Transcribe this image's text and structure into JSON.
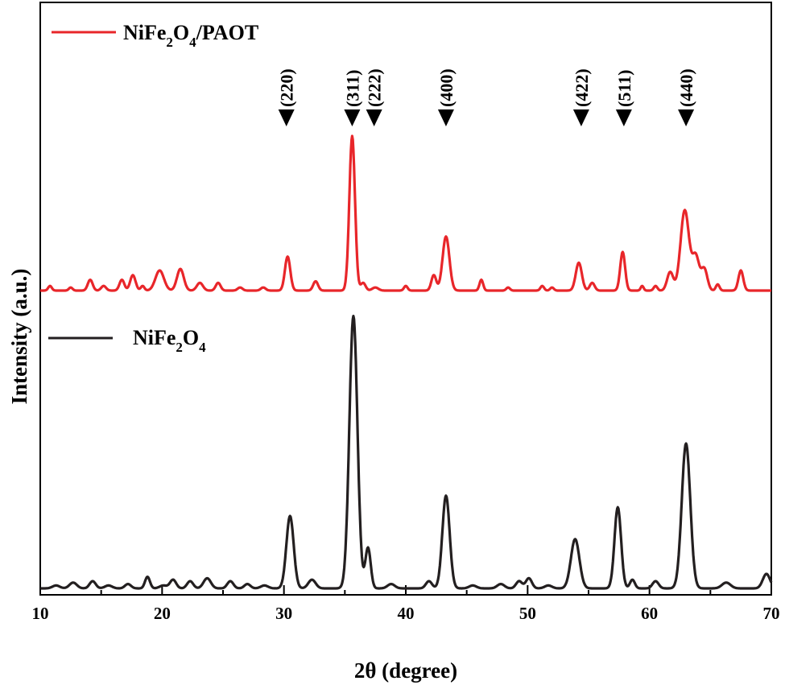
{
  "chart_data": {
    "type": "line",
    "xlabel": "2θ (degree)",
    "ylabel": "Intensity (a.u.)",
    "xlim": [
      10,
      70
    ],
    "x_ticks": [
      10,
      20,
      30,
      40,
      50,
      60,
      70
    ],
    "y_ticks_visible": false,
    "grid": false,
    "legend": [
      {
        "base": "NiFe",
        "sub1": "2",
        "mid": "O",
        "sub2": "4",
        "tail": "/PAOT",
        "color": "#e8262a"
      },
      {
        "base": "NiFe",
        "sub1": "2",
        "mid": "O",
        "sub2": "4",
        "tail": "",
        "color": "#231f20"
      }
    ],
    "annotations": [
      {
        "label": "(220)",
        "x": 30.2
      },
      {
        "label": "(311)",
        "x": 35.6
      },
      {
        "label": "(222)",
        "x": 37.4
      },
      {
        "label": "(400)",
        "x": 43.3
      },
      {
        "label": "(422)",
        "x": 54.4
      },
      {
        "label": "(511)",
        "x": 57.9
      },
      {
        "label": "(440)",
        "x": 63.0
      }
    ],
    "series": [
      {
        "name": "NiFe2O4/PAOT",
        "color": "#e8262a",
        "baseline": 0,
        "peaks": [
          [
            10.8,
            0.03,
            0.15
          ],
          [
            12.5,
            0.02,
            0.15
          ],
          [
            14.1,
            0.07,
            0.2
          ],
          [
            15.2,
            0.03,
            0.2
          ],
          [
            16.7,
            0.07,
            0.2
          ],
          [
            17.6,
            0.1,
            0.22
          ],
          [
            18.4,
            0.03,
            0.15
          ],
          [
            19.8,
            0.13,
            0.35
          ],
          [
            21.5,
            0.14,
            0.28
          ],
          [
            23.1,
            0.05,
            0.25
          ],
          [
            24.6,
            0.05,
            0.2
          ],
          [
            26.4,
            0.02,
            0.2
          ],
          [
            28.3,
            0.02,
            0.2
          ],
          [
            30.3,
            0.22,
            0.22
          ],
          [
            32.6,
            0.06,
            0.2
          ],
          [
            35.6,
            1.0,
            0.23
          ],
          [
            36.5,
            0.05,
            0.2
          ],
          [
            37.5,
            0.02,
            0.25
          ],
          [
            40.0,
            0.03,
            0.15
          ],
          [
            42.3,
            0.1,
            0.2
          ],
          [
            43.3,
            0.35,
            0.28
          ],
          [
            46.2,
            0.07,
            0.15
          ],
          [
            48.4,
            0.02,
            0.15
          ],
          [
            51.2,
            0.03,
            0.15
          ],
          [
            52.0,
            0.02,
            0.15
          ],
          [
            54.2,
            0.18,
            0.25
          ],
          [
            55.3,
            0.05,
            0.2
          ],
          [
            57.8,
            0.25,
            0.2
          ],
          [
            59.4,
            0.03,
            0.12
          ],
          [
            60.5,
            0.03,
            0.15
          ],
          [
            61.7,
            0.12,
            0.25
          ],
          [
            62.9,
            0.52,
            0.35
          ],
          [
            63.8,
            0.22,
            0.28
          ],
          [
            64.5,
            0.14,
            0.25
          ],
          [
            65.6,
            0.04,
            0.15
          ],
          [
            67.5,
            0.13,
            0.2
          ]
        ]
      },
      {
        "name": "NiFe2O4",
        "color": "#231f20",
        "baseline": 0,
        "peaks": [
          [
            11.3,
            0.01,
            0.3
          ],
          [
            12.7,
            0.02,
            0.3
          ],
          [
            14.3,
            0.025,
            0.25
          ],
          [
            15.6,
            0.01,
            0.3
          ],
          [
            17.2,
            0.015,
            0.25
          ],
          [
            18.8,
            0.04,
            0.2
          ],
          [
            20.1,
            0.01,
            0.3
          ],
          [
            20.9,
            0.03,
            0.25
          ],
          [
            22.3,
            0.025,
            0.25
          ],
          [
            23.7,
            0.035,
            0.3
          ],
          [
            25.6,
            0.025,
            0.25
          ],
          [
            27.0,
            0.015,
            0.25
          ],
          [
            28.4,
            0.01,
            0.3
          ],
          [
            30.5,
            0.25,
            0.3
          ],
          [
            32.3,
            0.03,
            0.3
          ],
          [
            35.7,
            0.94,
            0.33
          ],
          [
            36.9,
            0.14,
            0.22
          ],
          [
            38.8,
            0.015,
            0.3
          ],
          [
            41.9,
            0.025,
            0.25
          ],
          [
            43.3,
            0.32,
            0.3
          ],
          [
            45.5,
            0.01,
            0.3
          ],
          [
            47.8,
            0.015,
            0.3
          ],
          [
            49.3,
            0.025,
            0.25
          ],
          [
            50.1,
            0.035,
            0.25
          ],
          [
            51.7,
            0.01,
            0.3
          ],
          [
            53.9,
            0.17,
            0.35
          ],
          [
            57.4,
            0.28,
            0.27
          ],
          [
            58.6,
            0.03,
            0.2
          ],
          [
            60.5,
            0.025,
            0.25
          ],
          [
            63.0,
            0.5,
            0.35
          ],
          [
            66.3,
            0.02,
            0.35
          ],
          [
            69.6,
            0.05,
            0.3
          ]
        ]
      }
    ]
  }
}
